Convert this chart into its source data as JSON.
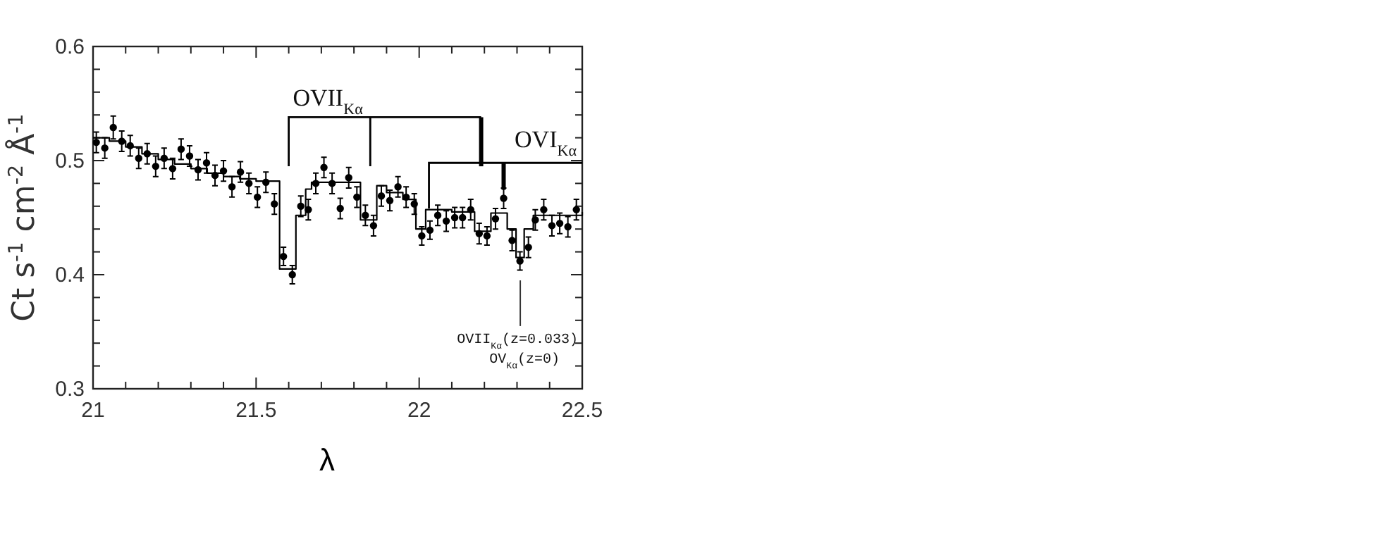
{
  "chart_data": {
    "type": "scatter",
    "xlabel": "λ",
    "ylabel": "Ct s$^{-1}$ cm$^{-2}$ Å$^{-1}$",
    "xlim": [
      21,
      22.5
    ],
    "ylim": [
      0.3,
      0.6
    ],
    "xticks": [
      21,
      {
        "value": 21.1,
        "label": null
      },
      {
        "value": 21.2,
        "label": null
      },
      {
        "value": 21.3,
        "label": null
      },
      {
        "value": 21.4,
        "label": null
      },
      21.5,
      {
        "value": 21.6,
        "label": null
      },
      {
        "value": 21.7,
        "label": null
      },
      {
        "value": 21.8,
        "label": null
      },
      {
        "value": 21.9,
        "label": null
      },
      22,
      {
        "value": 22.1,
        "label": null
      },
      {
        "value": 22.2,
        "label": null
      },
      {
        "value": 22.3,
        "label": null
      },
      {
        "value": 22.4,
        "label": null
      },
      22.5
    ],
    "yticks": [
      0.3,
      {
        "value": 0.32,
        "label": null
      },
      {
        "value": 0.34,
        "label": null
      },
      {
        "value": 0.36,
        "label": null
      },
      {
        "value": 0.38,
        "label": null
      },
      0.4,
      {
        "value": 0.42,
        "label": null
      },
      {
        "value": 0.44,
        "label": null
      },
      {
        "value": 0.46,
        "label": null
      },
      {
        "value": 0.48,
        "label": null
      },
      0.5,
      {
        "value": 0.52,
        "label": null
      },
      {
        "value": 0.54,
        "label": null
      },
      {
        "value": 0.56,
        "label": null
      },
      {
        "value": 0.58,
        "label": null
      },
      0.6
    ],
    "grid": false,
    "series": [
      {
        "color": "#000000",
        "marker": "circle",
        "x": [
          21.01,
          21.036,
          21.062,
          21.088,
          21.114,
          21.14,
          21.166,
          21.192,
          21.218,
          21.244,
          21.27,
          21.296,
          21.322,
          21.348,
          21.374,
          21.4,
          21.426,
          21.452,
          21.478,
          21.504,
          21.53,
          21.556,
          21.584,
          21.611,
          21.637,
          21.66,
          21.683,
          21.708,
          21.733,
          21.758,
          21.784,
          21.809,
          21.835,
          21.86,
          21.884,
          21.91,
          21.935,
          21.96,
          21.985,
          22.008,
          22.033,
          22.057,
          22.083,
          22.109,
          22.133,
          22.158,
          22.184,
          22.208,
          22.234,
          22.259,
          22.285,
          22.309,
          22.335,
          22.356,
          22.382,
          22.407,
          22.431,
          22.456,
          22.482
        ],
        "values": [
          0.516,
          0.511,
          0.529,
          0.517,
          0.513,
          0.502,
          0.506,
          0.495,
          0.502,
          0.493,
          0.51,
          0.504,
          0.492,
          0.498,
          0.487,
          0.491,
          0.477,
          0.49,
          0.48,
          0.468,
          0.481,
          0.462,
          0.416,
          0.4,
          0.46,
          0.457,
          0.48,
          0.494,
          0.48,
          0.458,
          0.485,
          0.468,
          0.452,
          0.443,
          0.469,
          0.465,
          0.477,
          0.468,
          0.462,
          0.434,
          0.439,
          0.452,
          0.447,
          0.45,
          0.45,
          0.457,
          0.436,
          0.434,
          0.449,
          0.467,
          0.43,
          0.412,
          0.424,
          0.448,
          0.457,
          0.443,
          0.445,
          0.442,
          0.457
        ],
        "errors": [
          0.009,
          0.009,
          0.01,
          0.009,
          0.009,
          0.009,
          0.009,
          0.009,
          0.009,
          0.009,
          0.009,
          0.009,
          0.009,
          0.009,
          0.009,
          0.009,
          0.009,
          0.009,
          0.009,
          0.009,
          0.009,
          0.009,
          0.008,
          0.008,
          0.009,
          0.009,
          0.009,
          0.009,
          0.009,
          0.009,
          0.009,
          0.009,
          0.009,
          0.009,
          0.009,
          0.009,
          0.009,
          0.009,
          0.009,
          0.008,
          0.008,
          0.009,
          0.009,
          0.009,
          0.009,
          0.009,
          0.009,
          0.008,
          0.009,
          0.009,
          0.009,
          0.008,
          0.009,
          0.009,
          0.009,
          0.009,
          0.009,
          0.009,
          0.009
        ]
      },
      {
        "type": "step",
        "color": "#000000",
        "marker": "none",
        "line_style": "solid",
        "x": [
          21.0,
          21.05,
          21.1,
          21.15,
          21.2,
          21.25,
          21.3,
          21.35,
          21.4,
          21.45,
          21.5,
          21.572,
          21.622,
          21.652,
          21.67,
          21.82,
          21.87,
          21.9,
          21.95,
          21.99,
          22.02,
          22.1,
          22.17,
          22.22,
          22.27,
          22.297,
          22.322,
          22.35,
          22.5
        ],
        "values": [
          0.52,
          0.517,
          0.512,
          0.506,
          0.501,
          0.497,
          0.493,
          0.489,
          0.486,
          0.484,
          0.482,
          0.405,
          0.452,
          0.475,
          0.481,
          0.448,
          0.478,
          0.472,
          0.466,
          0.44,
          0.457,
          0.455,
          0.438,
          0.454,
          0.44,
          0.415,
          0.44,
          0.452,
          0.455
        ]
      }
    ],
    "annotations": [
      "OVII$_{Kα}$",
      {
        "text": "OVI$_{Kα}$",
        "x": 22.259,
        "y": 0.467
      },
      "OVII$_{Kα}$(z=0.033)",
      "OV$_{Kα}$(z=0)"
    ]
  }
}
